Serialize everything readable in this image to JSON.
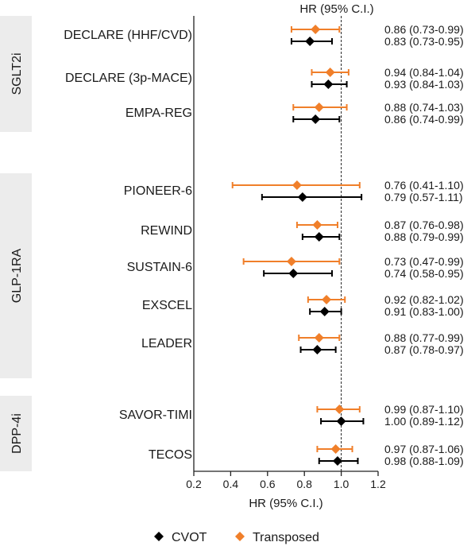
{
  "chart_data": {
    "type": "forest",
    "top_label": "HR (95% C.I.)",
    "xlabel": "HR (95% C.I.)",
    "xlim": [
      0.2,
      1.2
    ],
    "xticks": [
      0.2,
      0.4,
      0.6,
      0.8,
      1.0,
      1.2
    ],
    "xtick_labels": [
      "0.2",
      "0.4",
      "0.6",
      "0.8",
      "1.0",
      "1.2"
    ],
    "reference_line": 1.0,
    "groups": [
      {
        "label": "SGLT2i",
        "trials": [
          {
            "name": "DECLARE (HHF/CVD)",
            "transposed": {
              "hr": 0.86,
              "lo": 0.73,
              "hi": 0.99,
              "text": "0.86 (0.73-0.99)"
            },
            "cvot": {
              "hr": 0.83,
              "lo": 0.73,
              "hi": 0.95,
              "text": "0.83 (0.73-0.95)"
            }
          },
          {
            "name": "DECLARE (3p-MACE)",
            "transposed": {
              "hr": 0.94,
              "lo": 0.84,
              "hi": 1.04,
              "text": "0.94 (0.84-1.04)"
            },
            "cvot": {
              "hr": 0.93,
              "lo": 0.84,
              "hi": 1.03,
              "text": "0.93 (0.84-1.03)"
            }
          },
          {
            "name": "EMPA-REG",
            "transposed": {
              "hr": 0.88,
              "lo": 0.74,
              "hi": 1.03,
              "text": "0.88 (0.74-1.03)"
            },
            "cvot": {
              "hr": 0.86,
              "lo": 0.74,
              "hi": 0.99,
              "text": "0.86 (0.74-0.99)"
            }
          }
        ]
      },
      {
        "label": "GLP-1RA",
        "trials": [
          {
            "name": "PIONEER-6",
            "transposed": {
              "hr": 0.76,
              "lo": 0.41,
              "hi": 1.1,
              "text": "0.76 (0.41-1.10)"
            },
            "cvot": {
              "hr": 0.79,
              "lo": 0.57,
              "hi": 1.11,
              "text": "0.79 (0.57-1.11)"
            }
          },
          {
            "name": "REWIND",
            "transposed": {
              "hr": 0.87,
              "lo": 0.76,
              "hi": 0.98,
              "text": "0.87 (0.76-0.98)"
            },
            "cvot": {
              "hr": 0.88,
              "lo": 0.79,
              "hi": 0.99,
              "text": "0.88 (0.79-0.99)"
            }
          },
          {
            "name": "SUSTAIN-6",
            "transposed": {
              "hr": 0.73,
              "lo": 0.47,
              "hi": 0.99,
              "text": "0.73 (0.47-0.99)"
            },
            "cvot": {
              "hr": 0.74,
              "lo": 0.58,
              "hi": 0.95,
              "text": "0.74 (0.58-0.95)"
            }
          },
          {
            "name": "EXSCEL",
            "transposed": {
              "hr": 0.92,
              "lo": 0.82,
              "hi": 1.02,
              "text": "0.92 (0.82-1.02)"
            },
            "cvot": {
              "hr": 0.91,
              "lo": 0.83,
              "hi": 1.0,
              "text": "0.91 (0.83-1.00)"
            }
          },
          {
            "name": "LEADER",
            "transposed": {
              "hr": 0.88,
              "lo": 0.77,
              "hi": 0.99,
              "text": "0.88 (0.77-0.99)"
            },
            "cvot": {
              "hr": 0.87,
              "lo": 0.78,
              "hi": 0.97,
              "text": "0.87 (0.78-0.97)"
            }
          }
        ]
      },
      {
        "label": "DPP-4i",
        "trials": [
          {
            "name": "SAVOR-TIMI",
            "transposed": {
              "hr": 0.99,
              "lo": 0.87,
              "hi": 1.1,
              "text": "0.99 (0.87-1.10)"
            },
            "cvot": {
              "hr": 1.0,
              "lo": 0.89,
              "hi": 1.12,
              "text": "1.00 (0.89-1.12)"
            }
          },
          {
            "name": "TECOS",
            "transposed": {
              "hr": 0.97,
              "lo": 0.87,
              "hi": 1.06,
              "text": "0.97 (0.87-1.06)"
            },
            "cvot": {
              "hr": 0.98,
              "lo": 0.88,
              "hi": 1.09,
              "text": "0.98 (0.88-1.09)"
            }
          }
        ]
      }
    ],
    "legend": {
      "placement": "bottom",
      "items": [
        {
          "key": "cvot",
          "label": "CVOT",
          "color": "#000000"
        },
        {
          "key": "transposed",
          "label": "Transposed",
          "color": "#f07f2a"
        }
      ]
    }
  }
}
